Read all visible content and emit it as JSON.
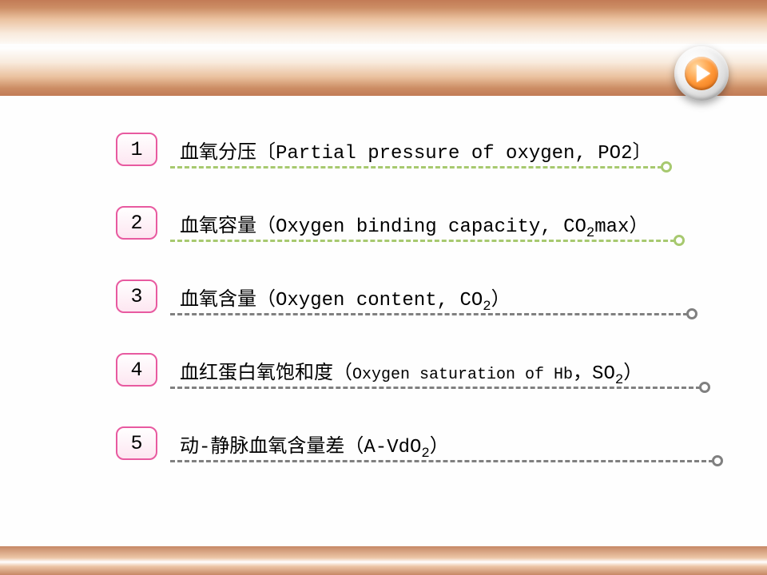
{
  "nav": {
    "direction": "next"
  },
  "list": {
    "items": [
      {
        "num": "1",
        "cn": "血氧分压〔",
        "en": "Partial pressure of oxygen",
        "tail": ", PO2〕",
        "sub": "",
        "color": "#a7c96f",
        "boxBorder": "#e85aa0",
        "boxBg": "#fde6f1",
        "lineWidth": 616
      },
      {
        "num": "2",
        "cn": "血氧容量（",
        "en": "Oxygen binding capacity",
        "tail": "max）",
        "sym": ", CO",
        "sub": "2",
        "color": "#a7c96f",
        "boxBorder": "#e85aa0",
        "boxBg": "#fde6f1",
        "lineWidth": 632
      },
      {
        "num": "3",
        "cn": "血氧含量（",
        "en": "Oxygen content",
        "tail": "）",
        "sym": ", CO",
        "sub": "2",
        "subSmall": true,
        "color": "#808080",
        "boxBorder": "#e85aa0",
        "boxBg": "#fde6f1",
        "lineWidth": 648
      },
      {
        "num": "4",
        "cn": "血红蛋白氧饱和度（",
        "en": "Oxygen saturation of Hb",
        "tail": "）",
        "sym": "，SO",
        "sub": "2",
        "enSmall": true,
        "color": "#808080",
        "boxBorder": "#e85aa0",
        "boxBg": "#fde6f1",
        "lineWidth": 664
      },
      {
        "num": "5",
        "cn": "动-静脉血氧含量差（",
        "en": "",
        "tail": "）",
        "sym": "A-VdO",
        "sub": "2",
        "color": "#808080",
        "boxBorder": "#e85aa0",
        "boxBg": "#fde6f1",
        "lineWidth": 680
      }
    ]
  }
}
